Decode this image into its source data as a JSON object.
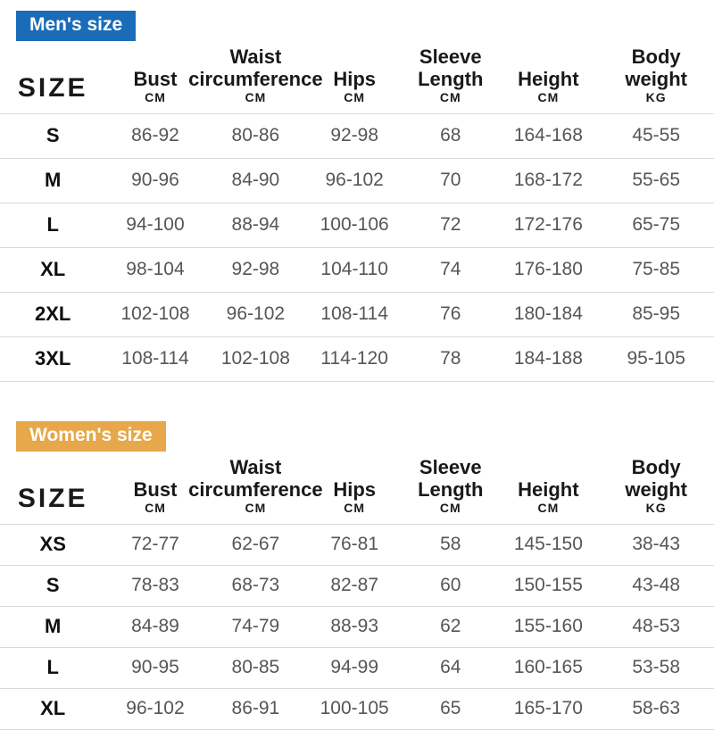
{
  "sections": [
    {
      "badge": {
        "label": "Men's size",
        "color": "#1b6cb8",
        "text_color": "#ffffff"
      },
      "columns": [
        {
          "lines": [
            "SIZE"
          ],
          "unit": ""
        },
        {
          "lines": [
            "Bust"
          ],
          "unit": "CM"
        },
        {
          "lines": [
            "Waist",
            "circumference"
          ],
          "unit": "CM"
        },
        {
          "lines": [
            "Hips"
          ],
          "unit": "CM"
        },
        {
          "lines": [
            "Sleeve",
            "Length"
          ],
          "unit": "CM"
        },
        {
          "lines": [
            "Height"
          ],
          "unit": "CM"
        },
        {
          "lines": [
            "Body",
            "weight"
          ],
          "unit": "KG"
        }
      ],
      "rows": [
        {
          "size": "S",
          "values": [
            "86-92",
            "80-86",
            "92-98",
            "68",
            "164-168",
            "45-55"
          ]
        },
        {
          "size": "M",
          "values": [
            "90-96",
            "84-90",
            "96-102",
            "70",
            "168-172",
            "55-65"
          ]
        },
        {
          "size": "L",
          "values": [
            "94-100",
            "88-94",
            "100-106",
            "72",
            "172-176",
            "65-75"
          ]
        },
        {
          "size": "XL",
          "values": [
            "98-104",
            "92-98",
            "104-110",
            "74",
            "176-180",
            "75-85"
          ]
        },
        {
          "size": "2XL",
          "values": [
            "102-108",
            "96-102",
            "108-114",
            "76",
            "180-184",
            "85-95"
          ]
        },
        {
          "size": "3XL",
          "values": [
            "108-114",
            "102-108",
            "114-120",
            "78",
            "184-188",
            "95-105"
          ]
        }
      ]
    },
    {
      "badge": {
        "label": "Women's size",
        "color": "#e7a74b",
        "text_color": "#ffffff"
      },
      "columns": [
        {
          "lines": [
            "SIZE"
          ],
          "unit": ""
        },
        {
          "lines": [
            "Bust"
          ],
          "unit": "CM"
        },
        {
          "lines": [
            "Waist",
            "circumference"
          ],
          "unit": "CM"
        },
        {
          "lines": [
            "Hips"
          ],
          "unit": "CM"
        },
        {
          "lines": [
            "Sleeve",
            "Length"
          ],
          "unit": "CM"
        },
        {
          "lines": [
            "Height"
          ],
          "unit": "CM"
        },
        {
          "lines": [
            "Body",
            "weight"
          ],
          "unit": "KG"
        }
      ],
      "rows": [
        {
          "size": "XS",
          "values": [
            "72-77",
            "62-67",
            "76-81",
            "58",
            "145-150",
            "38-43"
          ]
        },
        {
          "size": "S",
          "values": [
            "78-83",
            "68-73",
            "82-87",
            "60",
            "150-155",
            "43-48"
          ]
        },
        {
          "size": "M",
          "values": [
            "84-89",
            "74-79",
            "88-93",
            "62",
            "155-160",
            "48-53"
          ]
        },
        {
          "size": "L",
          "values": [
            "90-95",
            "80-85",
            "94-99",
            "64",
            "160-165",
            "53-58"
          ]
        },
        {
          "size": "XL",
          "values": [
            "96-102",
            "86-91",
            "100-105",
            "65",
            "165-170",
            "58-63"
          ]
        }
      ]
    }
  ]
}
